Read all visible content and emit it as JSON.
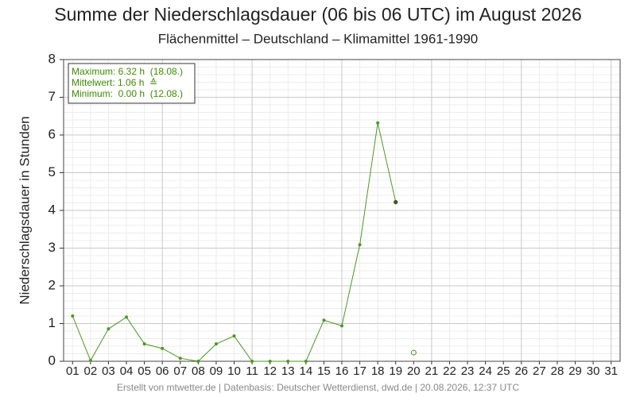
{
  "chart_data": {
    "type": "line",
    "title": "Summe der Niederschlagsdauer (06 bis 06 UTC) im August 2026",
    "subtitle": "Flächenmittel – Deutschland – Klimamittel 1961-1990",
    "y_label": "Niederschlagsdauer in Stunden",
    "footer": "Erstellt von mtwetter.de | Datenbasis: Deutscher Wetterdienst, dwd.de | 20.08.2026, 12:37 UTC",
    "annotations": [
      "Maximum: 6.32 h  (18.08.)",
      "Mittelwert: 1.06 h  ≙",
      "Minimum:  0.00 h  (12.08.)"
    ],
    "categories": [
      "01",
      "02",
      "03",
      "04",
      "05",
      "06",
      "07",
      "08",
      "09",
      "10",
      "11",
      "12",
      "13",
      "14",
      "15",
      "16",
      "17",
      "18",
      "19",
      "20",
      "21",
      "22",
      "23",
      "24",
      "25",
      "26",
      "27",
      "28",
      "29",
      "30",
      "31"
    ],
    "series": [
      {
        "color": "#4a9a1a",
        "values": [
          1.2,
          0.02,
          0.86,
          1.17,
          0.46,
          0.34,
          0.08,
          0.0,
          0.46,
          0.67,
          0.0,
          0.0,
          0.0,
          0.0,
          1.09,
          0.94,
          3.09,
          6.32,
          4.22,
          null,
          null,
          null,
          null,
          null,
          null,
          null,
          null,
          null,
          null,
          null,
          null
        ]
      },
      {
        "color": "#4a9a1a",
        "hollow": true,
        "values": [
          null,
          null,
          null,
          null,
          null,
          null,
          null,
          null,
          null,
          null,
          null,
          null,
          null,
          null,
          null,
          null,
          null,
          null,
          null,
          0.23,
          null,
          null,
          null,
          null,
          null,
          null,
          null,
          null,
          null,
          null,
          null
        ]
      }
    ],
    "ylim": [
      0,
      8
    ],
    "yticks": [
      0,
      1,
      2,
      3,
      4,
      5,
      6,
      7,
      8
    ],
    "grid": true
  }
}
